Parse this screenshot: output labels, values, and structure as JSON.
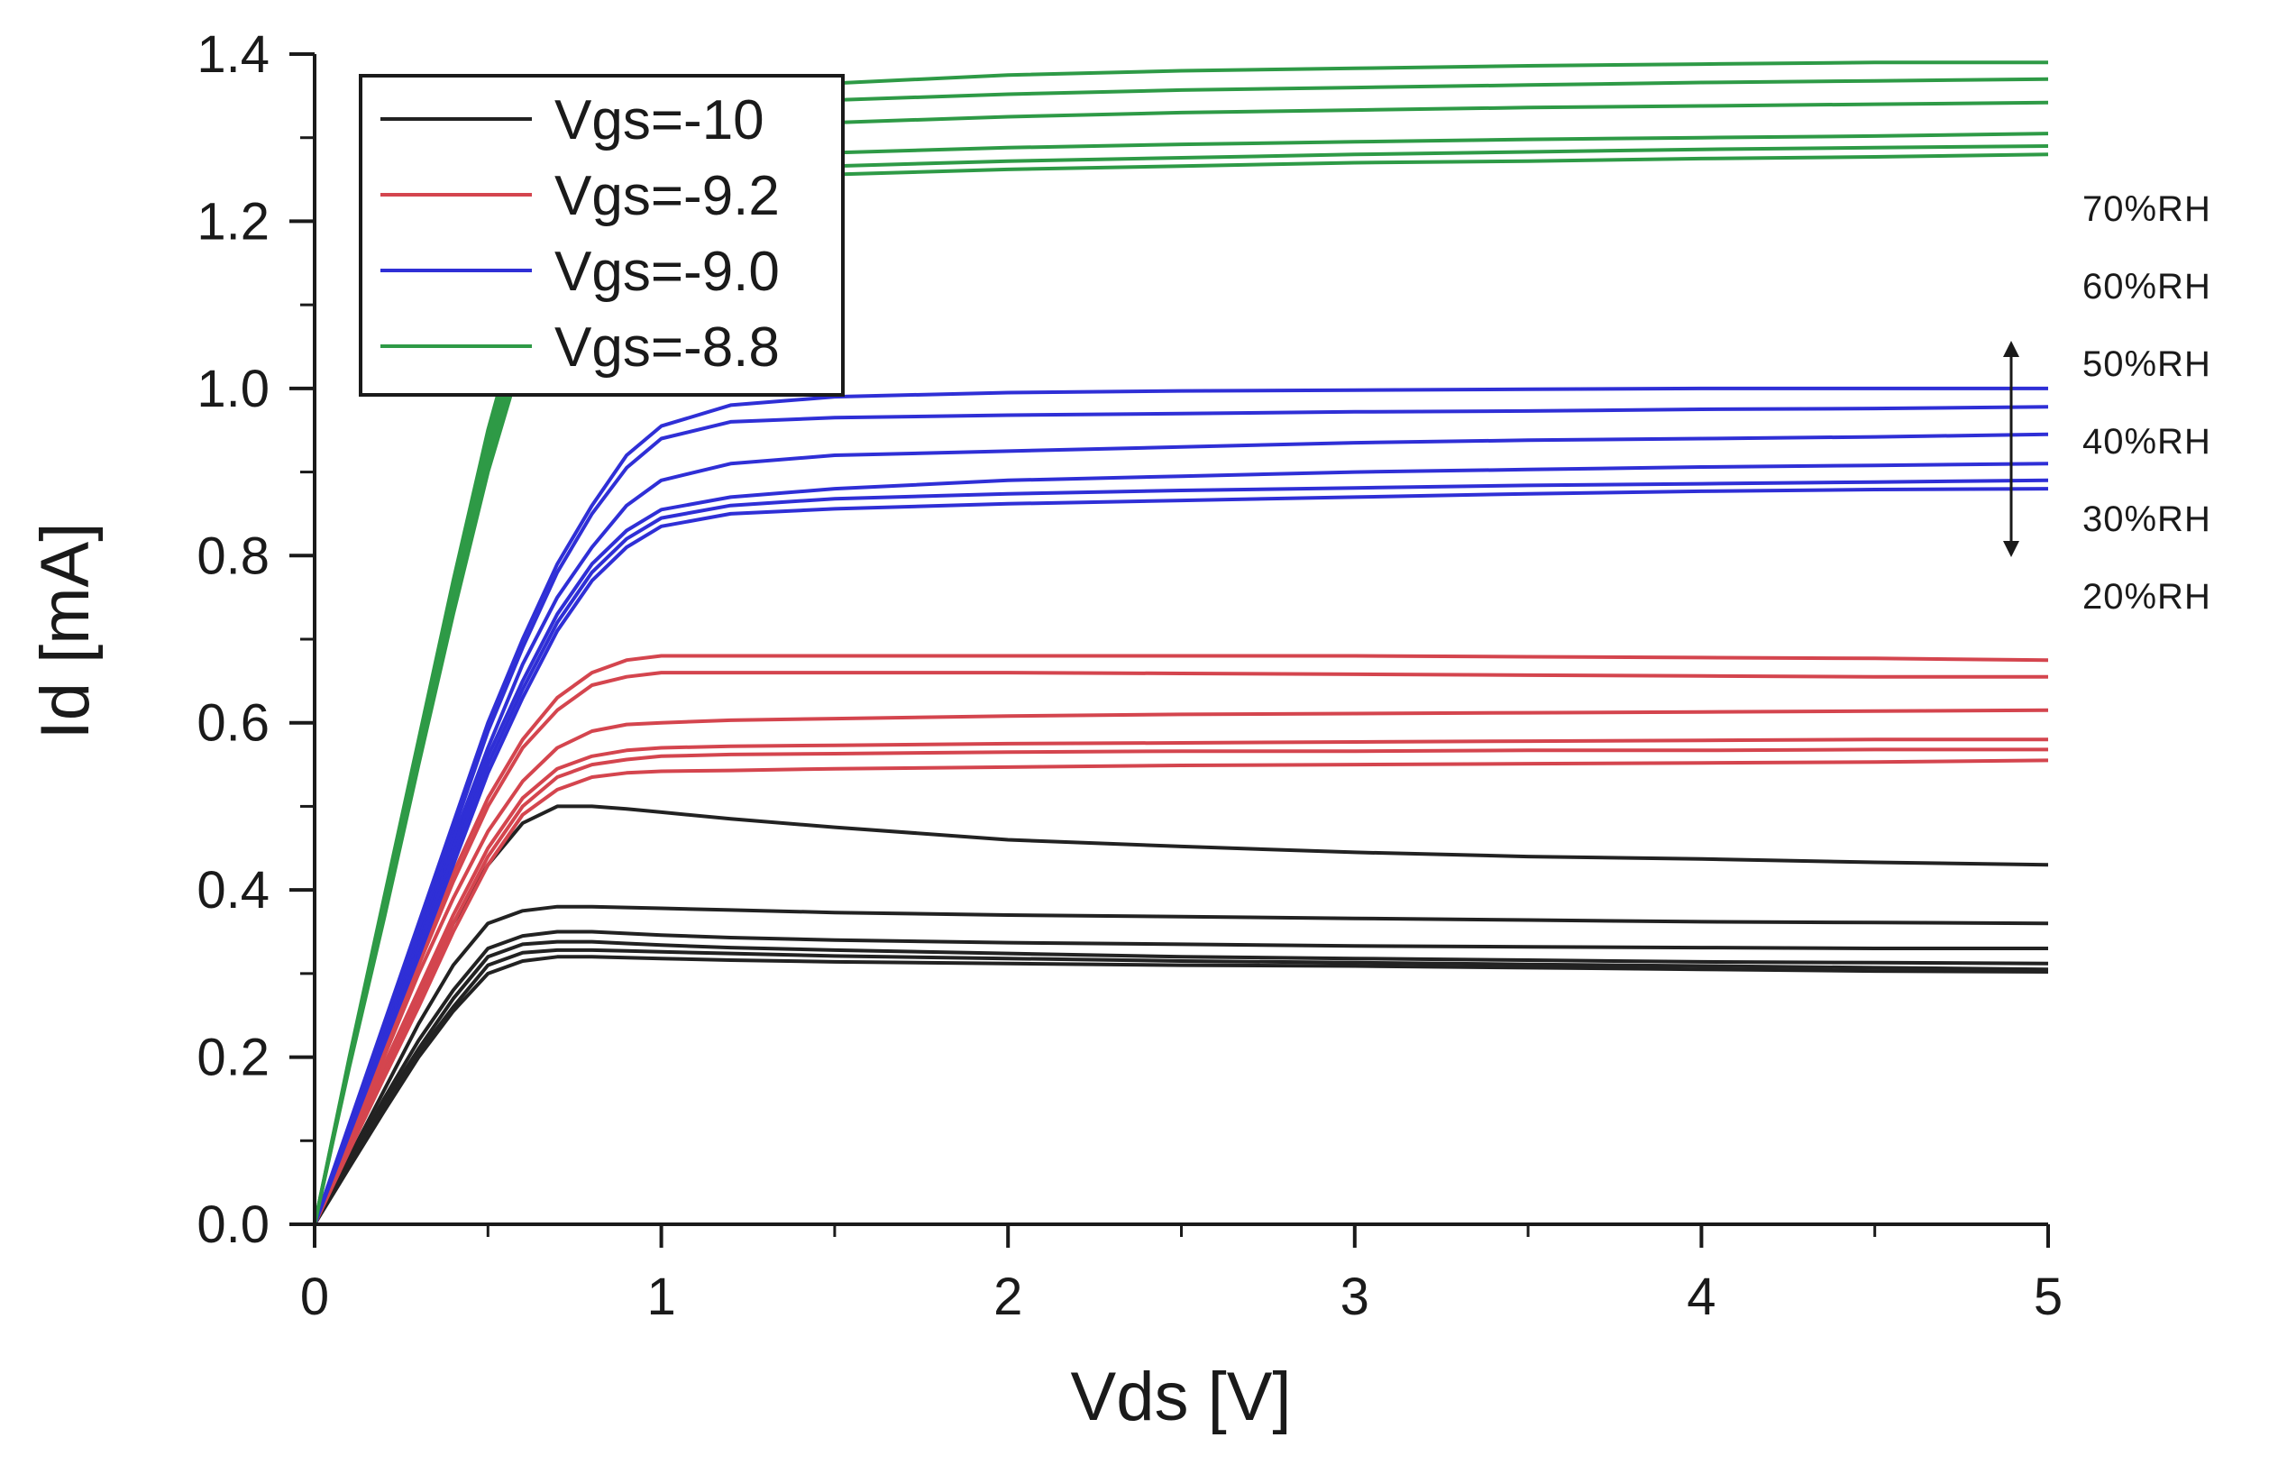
{
  "chart_data": {
    "type": "line",
    "title": "",
    "xlabel": "Vds [V]",
    "ylabel": "Id [mA]",
    "xlim": [
      0,
      5
    ],
    "ylim": [
      0,
      1.4
    ],
    "grid": false,
    "legend_position": "top-left",
    "x_ticks": [
      "0",
      "1",
      "2",
      "3",
      "4",
      "5"
    ],
    "y_ticks": [
      "0.0",
      "0.2",
      "0.4",
      "0.6",
      "0.8",
      "1.0",
      "1.2",
      "1.4"
    ],
    "x": [
      0,
      0.1,
      0.2,
      0.3,
      0.4,
      0.5,
      0.6,
      0.7,
      0.8,
      0.9,
      1.0,
      1.2,
      1.5,
      2.0,
      2.5,
      3.0,
      3.5,
      4.0,
      4.5,
      5.0
    ],
    "groups": [
      {
        "name": "Vgs=-10",
        "color": "#222222",
        "curves": [
          {
            "rh": "70%RH",
            "values": [
              0,
              0.09,
              0.18,
              0.27,
              0.36,
              0.43,
              0.48,
              0.5,
              0.5,
              0.497,
              0.493,
              0.485,
              0.475,
              0.46,
              0.452,
              0.445,
              0.44,
              0.437,
              0.433,
              0.43
            ]
          },
          {
            "rh": "60%RH",
            "values": [
              0,
              0.08,
              0.16,
              0.24,
              0.31,
              0.36,
              0.375,
              0.38,
              0.38,
              0.379,
              0.378,
              0.376,
              0.373,
              0.37,
              0.368,
              0.366,
              0.364,
              0.362,
              0.361,
              0.36
            ]
          },
          {
            "rh": "50%RH",
            "values": [
              0,
              0.075,
              0.15,
              0.22,
              0.28,
              0.33,
              0.345,
              0.35,
              0.35,
              0.348,
              0.346,
              0.343,
              0.34,
              0.337,
              0.335,
              0.333,
              0.332,
              0.331,
              0.33,
              0.33
            ]
          },
          {
            "rh": "40%RH",
            "values": [
              0,
              0.072,
              0.145,
              0.21,
              0.27,
              0.32,
              0.335,
              0.338,
              0.338,
              0.336,
              0.334,
              0.331,
              0.328,
              0.324,
              0.32,
              0.318,
              0.316,
              0.314,
              0.313,
              0.312
            ]
          },
          {
            "rh": "30%RH",
            "values": [
              0,
              0.07,
              0.14,
              0.205,
              0.26,
              0.31,
              0.325,
              0.328,
              0.328,
              0.327,
              0.326,
              0.324,
              0.321,
              0.318,
              0.315,
              0.313,
              0.311,
              0.309,
              0.307,
              0.305
            ]
          },
          {
            "rh": "20%RH",
            "values": [
              0,
              0.068,
              0.135,
              0.2,
              0.255,
              0.3,
              0.315,
              0.32,
              0.32,
              0.319,
              0.318,
              0.316,
              0.314,
              0.312,
              0.31,
              0.309,
              0.307,
              0.305,
              0.303,
              0.302
            ]
          }
        ]
      },
      {
        "name": "Vgs=-9.2",
        "color": "#d4454e",
        "curves": [
          {
            "rh": "70%RH",
            "values": [
              0,
              0.11,
              0.22,
              0.32,
              0.42,
              0.51,
              0.58,
              0.63,
              0.66,
              0.675,
              0.68,
              0.68,
              0.68,
              0.68,
              0.68,
              0.68,
              0.679,
              0.678,
              0.677,
              0.675
            ]
          },
          {
            "rh": "60%RH",
            "values": [
              0,
              0.105,
              0.21,
              0.31,
              0.41,
              0.5,
              0.57,
              0.615,
              0.645,
              0.655,
              0.66,
              0.66,
              0.66,
              0.66,
              0.659,
              0.658,
              0.657,
              0.656,
              0.655,
              0.655
            ]
          },
          {
            "rh": "50%RH",
            "values": [
              0,
              0.1,
              0.2,
              0.3,
              0.39,
              0.47,
              0.53,
              0.57,
              0.59,
              0.598,
              0.6,
              0.603,
              0.605,
              0.608,
              0.61,
              0.611,
              0.612,
              0.613,
              0.614,
              0.615
            ]
          },
          {
            "rh": "40%RH",
            "values": [
              0,
              0.095,
              0.19,
              0.28,
              0.37,
              0.45,
              0.51,
              0.545,
              0.56,
              0.567,
              0.57,
              0.572,
              0.573,
              0.575,
              0.576,
              0.577,
              0.578,
              0.579,
              0.58,
              0.58
            ]
          },
          {
            "rh": "30%RH",
            "values": [
              0,
              0.09,
              0.18,
              0.27,
              0.36,
              0.44,
              0.5,
              0.535,
              0.55,
              0.556,
              0.56,
              0.562,
              0.563,
              0.565,
              0.566,
              0.566,
              0.567,
              0.567,
              0.568,
              0.568
            ]
          },
          {
            "rh": "20%RH",
            "values": [
              0,
              0.088,
              0.175,
              0.26,
              0.35,
              0.43,
              0.49,
              0.52,
              0.535,
              0.54,
              0.542,
              0.543,
              0.545,
              0.547,
              0.549,
              0.55,
              0.551,
              0.552,
              0.553,
              0.555
            ]
          }
        ]
      },
      {
        "name": "Vgs=-9.0",
        "color": "#2f2fd6",
        "curves": [
          {
            "rh": "70%RH",
            "values": [
              0,
              0.12,
              0.24,
              0.36,
              0.48,
              0.6,
              0.7,
              0.79,
              0.86,
              0.92,
              0.955,
              0.98,
              0.99,
              0.995,
              0.997,
              0.998,
              0.999,
              1.0,
              1.0,
              1.0
            ]
          },
          {
            "rh": "60%RH",
            "values": [
              0,
              0.118,
              0.235,
              0.35,
              0.47,
              0.59,
              0.69,
              0.78,
              0.85,
              0.905,
              0.94,
              0.96,
              0.965,
              0.968,
              0.97,
              0.972,
              0.973,
              0.975,
              0.976,
              0.978
            ]
          },
          {
            "rh": "50%RH",
            "values": [
              0,
              0.115,
              0.23,
              0.34,
              0.46,
              0.57,
              0.67,
              0.75,
              0.81,
              0.86,
              0.89,
              0.91,
              0.92,
              0.925,
              0.93,
              0.935,
              0.938,
              0.94,
              0.942,
              0.945
            ]
          },
          {
            "rh": "40%RH",
            "values": [
              0,
              0.112,
              0.224,
              0.335,
              0.45,
              0.56,
              0.65,
              0.73,
              0.79,
              0.83,
              0.855,
              0.87,
              0.88,
              0.89,
              0.895,
              0.9,
              0.903,
              0.906,
              0.908,
              0.91
            ]
          },
          {
            "rh": "30%RH",
            "values": [
              0,
              0.11,
              0.22,
              0.33,
              0.44,
              0.55,
              0.64,
              0.72,
              0.78,
              0.82,
              0.845,
              0.86,
              0.868,
              0.874,
              0.878,
              0.881,
              0.884,
              0.886,
              0.888,
              0.89
            ]
          },
          {
            "rh": "20%RH",
            "values": [
              0,
              0.108,
              0.215,
              0.32,
              0.43,
              0.54,
              0.63,
              0.71,
              0.77,
              0.81,
              0.835,
              0.85,
              0.856,
              0.862,
              0.866,
              0.87,
              0.874,
              0.877,
              0.879,
              0.88
            ]
          }
        ]
      },
      {
        "name": "Vgs=-8.8",
        "color": "#2e9a46",
        "curves": [
          {
            "rh": "70%RH",
            "values": [
              0,
              0.2,
              0.39,
              0.58,
              0.77,
              0.95,
              1.1,
              1.21,
              1.28,
              1.32,
              1.34,
              1.355,
              1.365,
              1.375,
              1.38,
              1.383,
              1.386,
              1.388,
              1.39,
              1.39
            ]
          },
          {
            "rh": "60%RH",
            "values": [
              0,
              0.198,
              0.385,
              0.575,
              0.76,
              0.94,
              1.09,
              1.2,
              1.265,
              1.3,
              1.32,
              1.335,
              1.345,
              1.352,
              1.357,
              1.36,
              1.363,
              1.366,
              1.368,
              1.37
            ]
          },
          {
            "rh": "50%RH",
            "values": [
              0,
              0.195,
              0.38,
              0.57,
              0.75,
              0.93,
              1.08,
              1.18,
              1.245,
              1.28,
              1.3,
              1.31,
              1.318,
              1.325,
              1.33,
              1.333,
              1.336,
              1.338,
              1.34,
              1.342
            ]
          },
          {
            "rh": "40%RH",
            "values": [
              0,
              0.192,
              0.375,
              0.56,
              0.74,
              0.92,
              1.06,
              1.16,
              1.22,
              1.25,
              1.265,
              1.275,
              1.282,
              1.288,
              1.292,
              1.295,
              1.298,
              1.3,
              1.302,
              1.305
            ]
          },
          {
            "rh": "30%RH",
            "values": [
              0,
              0.19,
              0.37,
              0.555,
              0.735,
              0.91,
              1.05,
              1.15,
              1.21,
              1.24,
              1.252,
              1.26,
              1.266,
              1.272,
              1.276,
              1.28,
              1.283,
              1.286,
              1.288,
              1.29
            ]
          },
          {
            "rh": "20%RH",
            "values": [
              0,
              0.188,
              0.365,
              0.55,
              0.73,
              0.9,
              1.04,
              1.14,
              1.2,
              1.23,
              1.242,
              1.25,
              1.256,
              1.262,
              1.266,
              1.27,
              1.272,
              1.275,
              1.277,
              1.28
            ]
          }
        ]
      }
    ],
    "rh_labels": [
      "70%RH",
      "60%RH",
      "50%RH",
      "40%RH",
      "30%RH",
      "20%RH"
    ],
    "legend": [
      {
        "label": "Vgs=-10",
        "color": "#222222"
      },
      {
        "label": "Vgs=-9.2",
        "color": "#d4454e"
      },
      {
        "label": "Vgs=-9.0",
        "color": "#2f2fd6"
      },
      {
        "label": "Vgs=-8.8",
        "color": "#2e9a46"
      }
    ]
  }
}
